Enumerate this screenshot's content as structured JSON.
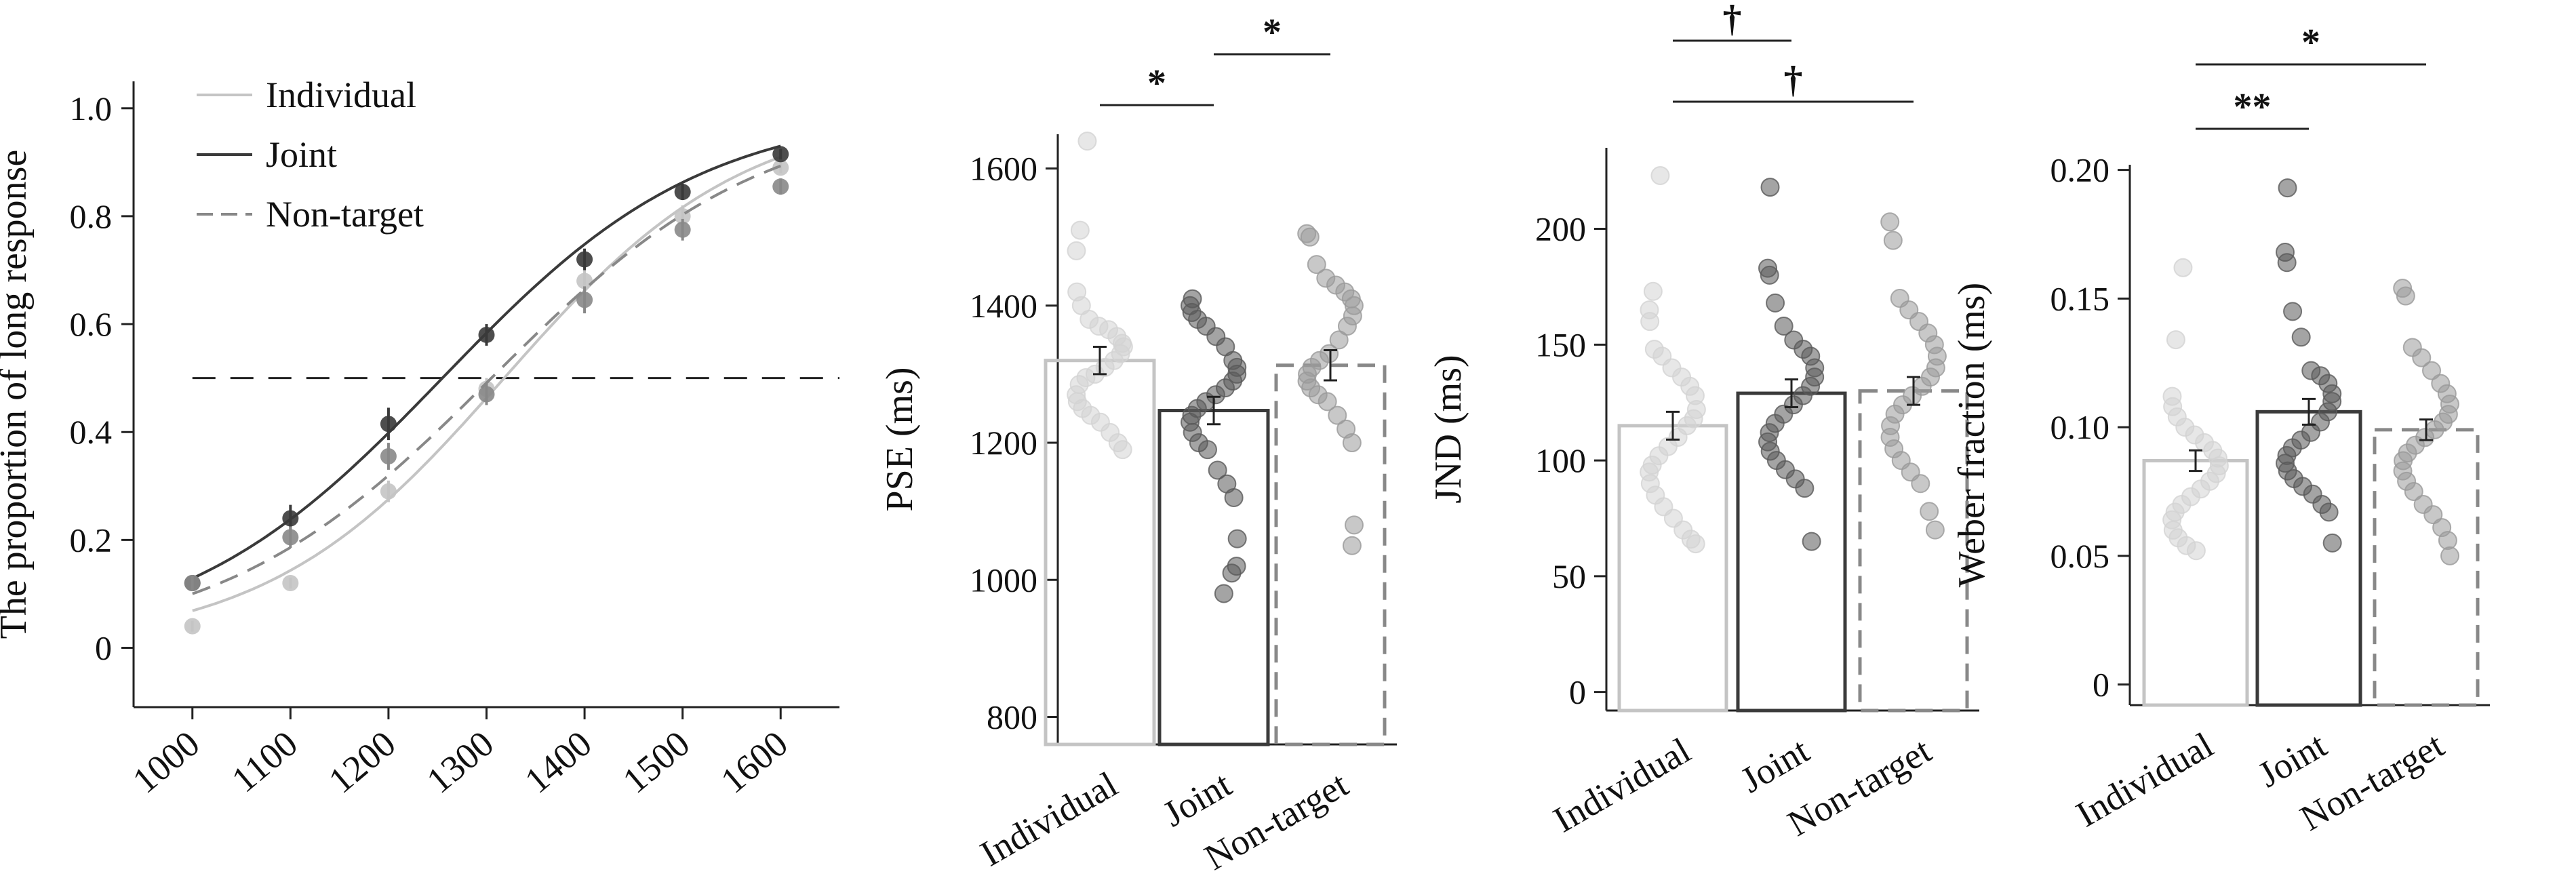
{
  "colors": {
    "individual": "#c4c4c4",
    "joint": "#3a3a3a",
    "non_target": "#888888",
    "individual_dot": "#d3d3d3",
    "joint_dot": "#5a5a5a",
    "non_target_dot": "#9a9a9a"
  },
  "chart_data": [
    {
      "id": "psychometric",
      "type": "line",
      "title": "",
      "xlabel": "",
      "ylabel": "The proportion of long response",
      "x": [
        1000,
        1100,
        1200,
        1300,
        1400,
        1500,
        1600
      ],
      "x_ticks": [
        "1000",
        "1100",
        "1200",
        "1300",
        "1400",
        "1500",
        "1600"
      ],
      "y_ticks": [
        "0",
        "0.2",
        "0.4",
        "0.6",
        "0.8",
        "1.0"
      ],
      "xlim": [
        940,
        1660
      ],
      "ylim": [
        -0.11,
        1.05
      ],
      "reference_line_y": 0.5,
      "legend_position": "top-left",
      "series": [
        {
          "name": "Individual",
          "style": "solid",
          "color_key": "individual",
          "values": [
            0.04,
            0.12,
            0.29,
            0.48,
            0.68,
            0.8,
            0.89
          ],
          "errors": [
            0.01,
            0.01,
            0.02,
            0.02,
            0.02,
            0.02,
            0.01
          ],
          "fit": {
            "pse": 1318,
            "slope": 0.0082
          }
        },
        {
          "name": "Joint",
          "style": "solid",
          "color_key": "joint",
          "values": [
            0.12,
            0.24,
            0.415,
            0.58,
            0.72,
            0.845,
            0.915
          ],
          "errors": [
            0.015,
            0.025,
            0.03,
            0.02,
            0.02,
            0.015,
            0.01
          ],
          "fit": {
            "pse": 1255,
            "slope": 0.0075
          }
        },
        {
          "name": "Non-target",
          "style": "dashed",
          "color_key": "non_target",
          "values": [
            0.12,
            0.205,
            0.355,
            0.47,
            0.645,
            0.775,
            0.855
          ],
          "errors": [
            0.015,
            0.02,
            0.025,
            0.02,
            0.025,
            0.02,
            0.015
          ],
          "fit": {
            "pse": 1305,
            "slope": 0.0072
          }
        }
      ]
    },
    {
      "id": "pse",
      "type": "bar",
      "title": "",
      "xlabel": "",
      "ylabel": "PSE (ms)",
      "categories": [
        "Individual",
        "Joint",
        "Non-target"
      ],
      "values": [
        1320,
        1247,
        1313
      ],
      "errors": [
        20,
        20,
        22
      ],
      "bar_styles": [
        "solid",
        "solid",
        "dashed"
      ],
      "color_keys": [
        "individual",
        "joint",
        "non_target"
      ],
      "ylim": [
        760,
        1650
      ],
      "y_ticks": [
        800,
        1000,
        1200,
        1400,
        1600
      ],
      "individual_points": [
        [
          1640,
          1510,
          1480,
          1420,
          1400,
          1380,
          1370,
          1365,
          1355,
          1345,
          1340,
          1330,
          1320,
          1310,
          1300,
          1295,
          1285,
          1270,
          1260,
          1250,
          1240,
          1230,
          1215,
          1200,
          1190
        ],
        [
          1410,
          1400,
          1390,
          1380,
          1370,
          1355,
          1340,
          1320,
          1310,
          1300,
          1290,
          1280,
          1270,
          1260,
          1250,
          1240,
          1230,
          1215,
          1200,
          1190,
          1160,
          1140,
          1120,
          1060,
          1020,
          1010,
          980
        ],
        [
          1505,
          1500,
          1460,
          1440,
          1430,
          1420,
          1410,
          1400,
          1385,
          1370,
          1350,
          1330,
          1320,
          1310,
          1300,
          1290,
          1280,
          1270,
          1260,
          1240,
          1220,
          1200,
          1080,
          1050
        ]
      ],
      "significance": [
        {
          "from": 0,
          "to": 1,
          "label": "*",
          "level": 0
        },
        {
          "from": 1,
          "to": 2,
          "label": "*",
          "level": 1
        }
      ]
    },
    {
      "id": "jnd",
      "type": "bar",
      "title": "",
      "xlabel": "",
      "ylabel": "JND (ms)",
      "categories": [
        "Individual",
        "Joint",
        "Non-target"
      ],
      "values": [
        115,
        129,
        130
      ],
      "errors": [
        6,
        6,
        6
      ],
      "bar_styles": [
        "solid",
        "solid",
        "dashed"
      ],
      "color_keys": [
        "individual",
        "joint",
        "non_target"
      ],
      "ylim": [
        -8,
        235
      ],
      "y_ticks": [
        0,
        50,
        100,
        150,
        200
      ],
      "individual_points": [
        [
          223,
          173,
          165,
          160,
          148,
          145,
          140,
          136,
          132,
          128,
          122,
          118,
          115,
          110,
          106,
          102,
          98,
          95,
          90,
          85,
          80,
          75,
          70,
          66,
          64
        ],
        [
          218,
          183,
          180,
          168,
          158,
          152,
          148,
          145,
          140,
          136,
          132,
          128,
          124,
          120,
          116,
          112,
          108,
          104,
          100,
          96,
          92,
          88,
          65
        ],
        [
          203,
          195,
          170,
          165,
          160,
          155,
          150,
          145,
          140,
          136,
          132,
          128,
          124,
          120,
          115,
          110,
          105,
          100,
          95,
          90,
          78,
          70
        ]
      ],
      "significance": [
        {
          "from": 0,
          "to": 1,
          "label": "†",
          "level": 1
        },
        {
          "from": 0,
          "to": 2,
          "label": "†",
          "level": 0
        }
      ]
    },
    {
      "id": "weber",
      "type": "bar",
      "title": "",
      "xlabel": "",
      "ylabel": "Weber fraction (ms)",
      "categories": [
        "Individual",
        "Joint",
        "Non-target"
      ],
      "values": [
        0.087,
        0.106,
        0.099
      ],
      "errors": [
        0.004,
        0.005,
        0.004
      ],
      "bar_styles": [
        "solid",
        "solid",
        "dashed"
      ],
      "color_keys": [
        "individual",
        "joint",
        "non_target"
      ],
      "ylim": [
        -0.008,
        0.202
      ],
      "y_ticks": [
        "0",
        "0.05",
        "0.10",
        "0.15",
        "0.20"
      ],
      "y_tick_values": [
        0,
        0.05,
        0.1,
        0.15,
        0.2
      ],
      "individual_points": [
        [
          0.162,
          0.134,
          0.112,
          0.108,
          0.104,
          0.1,
          0.097,
          0.094,
          0.091,
          0.088,
          0.085,
          0.082,
          0.079,
          0.076,
          0.073,
          0.07,
          0.067,
          0.064,
          0.06,
          0.057,
          0.054,
          0.052
        ],
        [
          0.193,
          0.168,
          0.164,
          0.145,
          0.135,
          0.122,
          0.12,
          0.117,
          0.113,
          0.11,
          0.106,
          0.102,
          0.098,
          0.095,
          0.092,
          0.089,
          0.086,
          0.083,
          0.08,
          0.077,
          0.074,
          0.07,
          0.067,
          0.055
        ],
        [
          0.154,
          0.151,
          0.131,
          0.127,
          0.122,
          0.117,
          0.113,
          0.109,
          0.105,
          0.102,
          0.099,
          0.096,
          0.093,
          0.09,
          0.087,
          0.083,
          0.079,
          0.075,
          0.07,
          0.066,
          0.061,
          0.056,
          0.05
        ]
      ],
      "significance": [
        {
          "from": 0,
          "to": 1,
          "label": "**",
          "level": 0
        },
        {
          "from": 0,
          "to": 2,
          "label": "*",
          "level": 1
        }
      ]
    }
  ]
}
